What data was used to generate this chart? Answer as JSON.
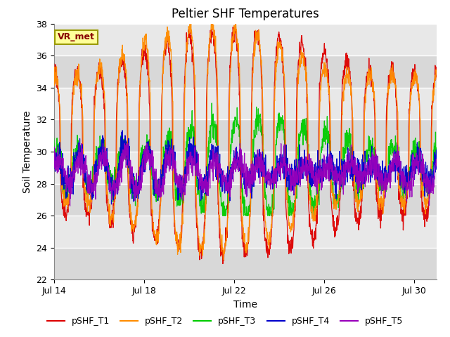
{
  "title": "Peltier SHF Temperatures",
  "xlabel": "Time",
  "ylabel": "Soil Temperature",
  "ylim": [
    22,
    38
  ],
  "yticks": [
    22,
    24,
    26,
    28,
    30,
    32,
    34,
    36,
    38
  ],
  "x_tick_labels": [
    "Jul 14",
    "Jul 18",
    "Jul 22",
    "Jul 26",
    "Jul 30"
  ],
  "x_tick_positions": [
    0,
    4,
    8,
    12,
    16
  ],
  "xlim_days": [
    0,
    17
  ],
  "background_color": "#e0e0e0",
  "figure_bg": "#ffffff",
  "band_colors": [
    "#d8d8d8",
    "#e8e8e8"
  ],
  "lines": [
    {
      "label": "pSHF_T1",
      "color": "#dd0000"
    },
    {
      "label": "pSHF_T2",
      "color": "#ff8c00"
    },
    {
      "label": "pSHF_T3",
      "color": "#00cc00"
    },
    {
      "label": "pSHF_T4",
      "color": "#0000cc"
    },
    {
      "label": "pSHF_T5",
      "color": "#9900bb"
    }
  ],
  "annotation_text": "VR_met",
  "annotation_color": "#880000",
  "annotation_bg": "#ffff99",
  "annotation_border": "#999900",
  "title_fontsize": 12,
  "axis_label_fontsize": 10,
  "tick_fontsize": 9,
  "legend_fontsize": 9
}
